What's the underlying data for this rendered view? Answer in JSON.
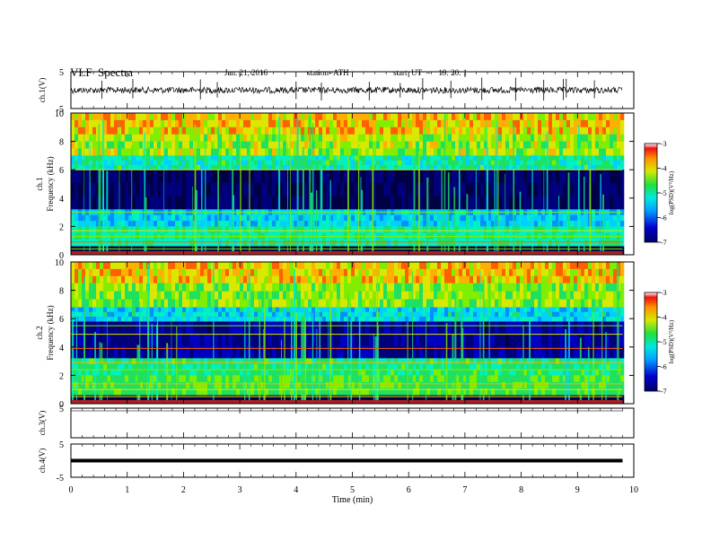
{
  "header": {
    "title": "VLF  Spectra",
    "date": "Jan. 21, 2016",
    "station": "station=ATH",
    "start": "start  UT  =    19: 20: 1"
  },
  "chart_data": [
    {
      "type": "line",
      "name": "ch1-waveform",
      "ylabel": "ch.1(V)",
      "ylim": [
        -5,
        5
      ],
      "yticks": [
        "5",
        "-5"
      ],
      "baseline": 0,
      "x_range_min": [
        0,
        9.8
      ],
      "spikes_min": [
        0.55,
        1.1,
        2.3,
        2.6,
        4.0,
        4.45,
        5.3,
        5.85,
        6.25,
        6.75,
        7.3,
        7.9,
        8.4,
        8.75,
        8.8,
        9.3
      ]
    },
    {
      "type": "heatmap",
      "name": "ch1-spectrogram",
      "ylabel": "ch.1\nFrequency  (kHz)",
      "ylim": [
        0,
        10
      ],
      "yticks": [
        "0",
        "2",
        "4",
        "6",
        "8",
        "10"
      ],
      "x_range_min": [
        0,
        9.8
      ],
      "colorbar": {
        "label": "log(PSD)(V²/Hz)",
        "range": [
          -7,
          -3
        ],
        "ticks": [
          "-3",
          "-4",
          "-5",
          "-6",
          "-7"
        ]
      }
    },
    {
      "type": "heatmap",
      "name": "ch2-spectrogram",
      "ylabel": "ch.2\nFrequency  (kHz)",
      "ylim": [
        0,
        10
      ],
      "yticks": [
        "0",
        "2",
        "4",
        "6",
        "8",
        "10"
      ],
      "x_range_min": [
        0,
        9.8
      ],
      "colorbar": {
        "label": "log(PSD)(V²/Hz)",
        "range": [
          -7,
          -3
        ],
        "ticks": [
          "-3",
          "-4",
          "-5",
          "-6",
          "-7"
        ]
      }
    },
    {
      "type": "line",
      "name": "ch3-waveform",
      "ylabel": "ch.3(V)",
      "ylim": [
        -5,
        5
      ],
      "yticks": [
        "5"
      ],
      "baseline": 5
    },
    {
      "type": "line",
      "name": "ch4-waveform",
      "ylabel": "ch.4(V)",
      "ylim": [
        -5,
        5
      ],
      "yticks": [
        "5",
        "-5"
      ],
      "baseline": 0,
      "x_range_min": [
        0,
        9.8
      ]
    }
  ],
  "x_axis": {
    "label": "Time  (min)",
    "range": [
      0,
      10
    ],
    "ticks": [
      "0",
      "1",
      "2",
      "3",
      "4",
      "5",
      "6",
      "7",
      "8",
      "9",
      "10"
    ]
  }
}
